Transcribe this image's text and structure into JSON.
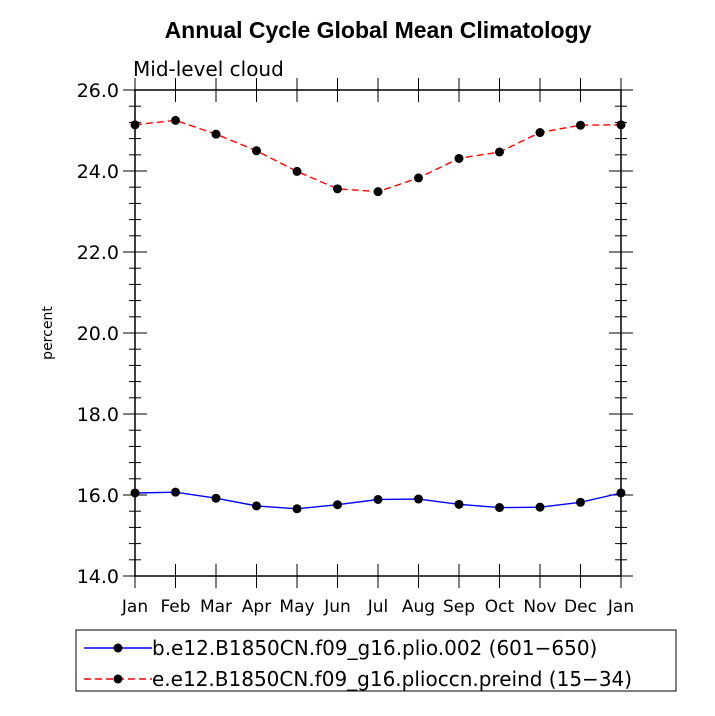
{
  "chart_data": {
    "type": "line",
    "title": "Annual Cycle Global Mean Climatology",
    "subtitle": "Mid-level cloud",
    "xlabel": "",
    "ylabel": "percent",
    "categories": [
      "Jan",
      "Feb",
      "Mar",
      "Apr",
      "May",
      "Jun",
      "Jul",
      "Aug",
      "Sep",
      "Oct",
      "Nov",
      "Dec",
      "Jan"
    ],
    "ylim": [
      14.0,
      26.0
    ],
    "yticks": [
      "14.0",
      "16.0",
      "18.0",
      "20.0",
      "22.0",
      "24.0",
      "26.0"
    ],
    "grid": false,
    "legend_position": "bottom",
    "series": [
      {
        "name": "b.e12.B1850CN.f09_g16.plio.002 (601−650)",
        "color": "#0000ff",
        "dash": "solid",
        "values": [
          16.05,
          16.07,
          15.92,
          15.73,
          15.66,
          15.76,
          15.89,
          15.9,
          15.77,
          15.69,
          15.7,
          15.82,
          16.05
        ]
      },
      {
        "name": "e.e12.B1850CN.f09_g16.plioccn.preind (15−34)",
        "color": "#ff0000",
        "dash": "dashed",
        "values": [
          25.14,
          25.25,
          24.91,
          24.5,
          23.99,
          23.56,
          23.49,
          23.83,
          24.31,
          24.47,
          24.95,
          25.13,
          25.14
        ]
      }
    ]
  }
}
